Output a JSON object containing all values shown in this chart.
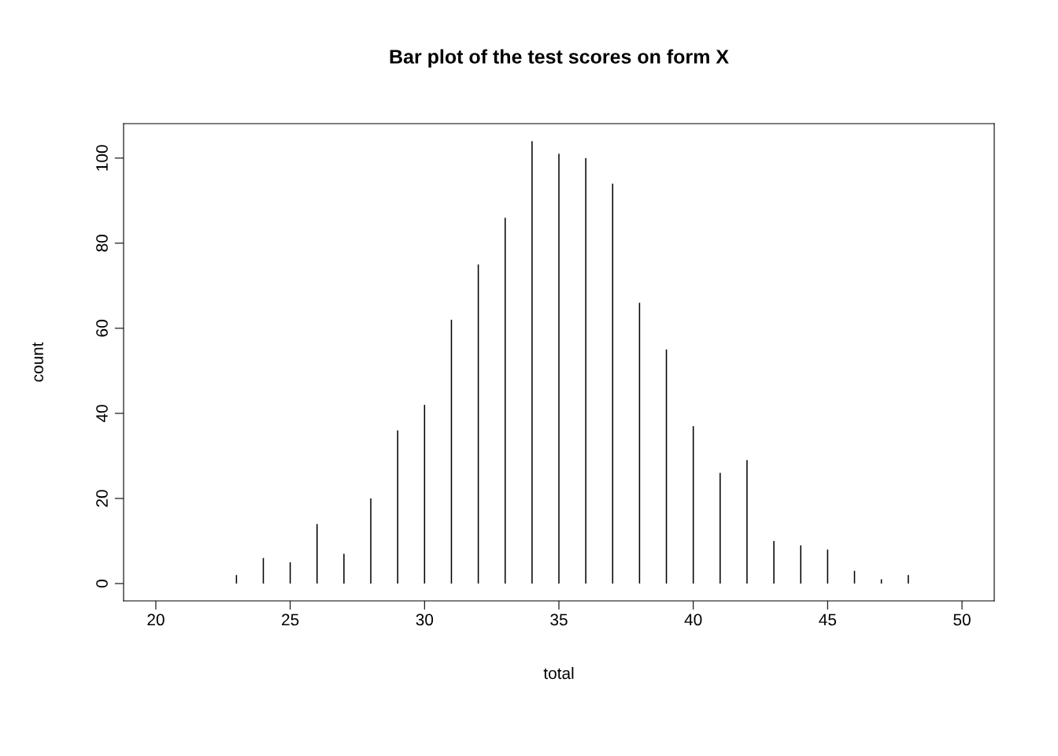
{
  "chart_data": {
    "type": "bar",
    "title": "Bar plot of the test scores on form X",
    "xlabel": "total",
    "ylabel": "count",
    "x": [
      20,
      21,
      22,
      23,
      24,
      25,
      26,
      27,
      28,
      29,
      30,
      31,
      32,
      33,
      34,
      35,
      36,
      37,
      38,
      39,
      40,
      41,
      42,
      43,
      44,
      45,
      46,
      47,
      48,
      49,
      50
    ],
    "values": [
      0,
      0,
      0,
      2,
      6,
      5,
      14,
      7,
      20,
      36,
      42,
      62,
      75,
      86,
      104,
      101,
      100,
      94,
      66,
      55,
      37,
      26,
      29,
      10,
      9,
      8,
      3,
      1,
      2,
      0,
      0
    ],
    "color": "#000000",
    "xlim": [
      18.8,
      51.2
    ],
    "xticks": [
      20,
      25,
      30,
      35,
      40,
      45,
      50
    ],
    "ylim": [
      -4.07,
      108.1
    ],
    "yticks": [
      0,
      20,
      40,
      60,
      80,
      100
    ],
    "grid": false,
    "legend": false
  }
}
